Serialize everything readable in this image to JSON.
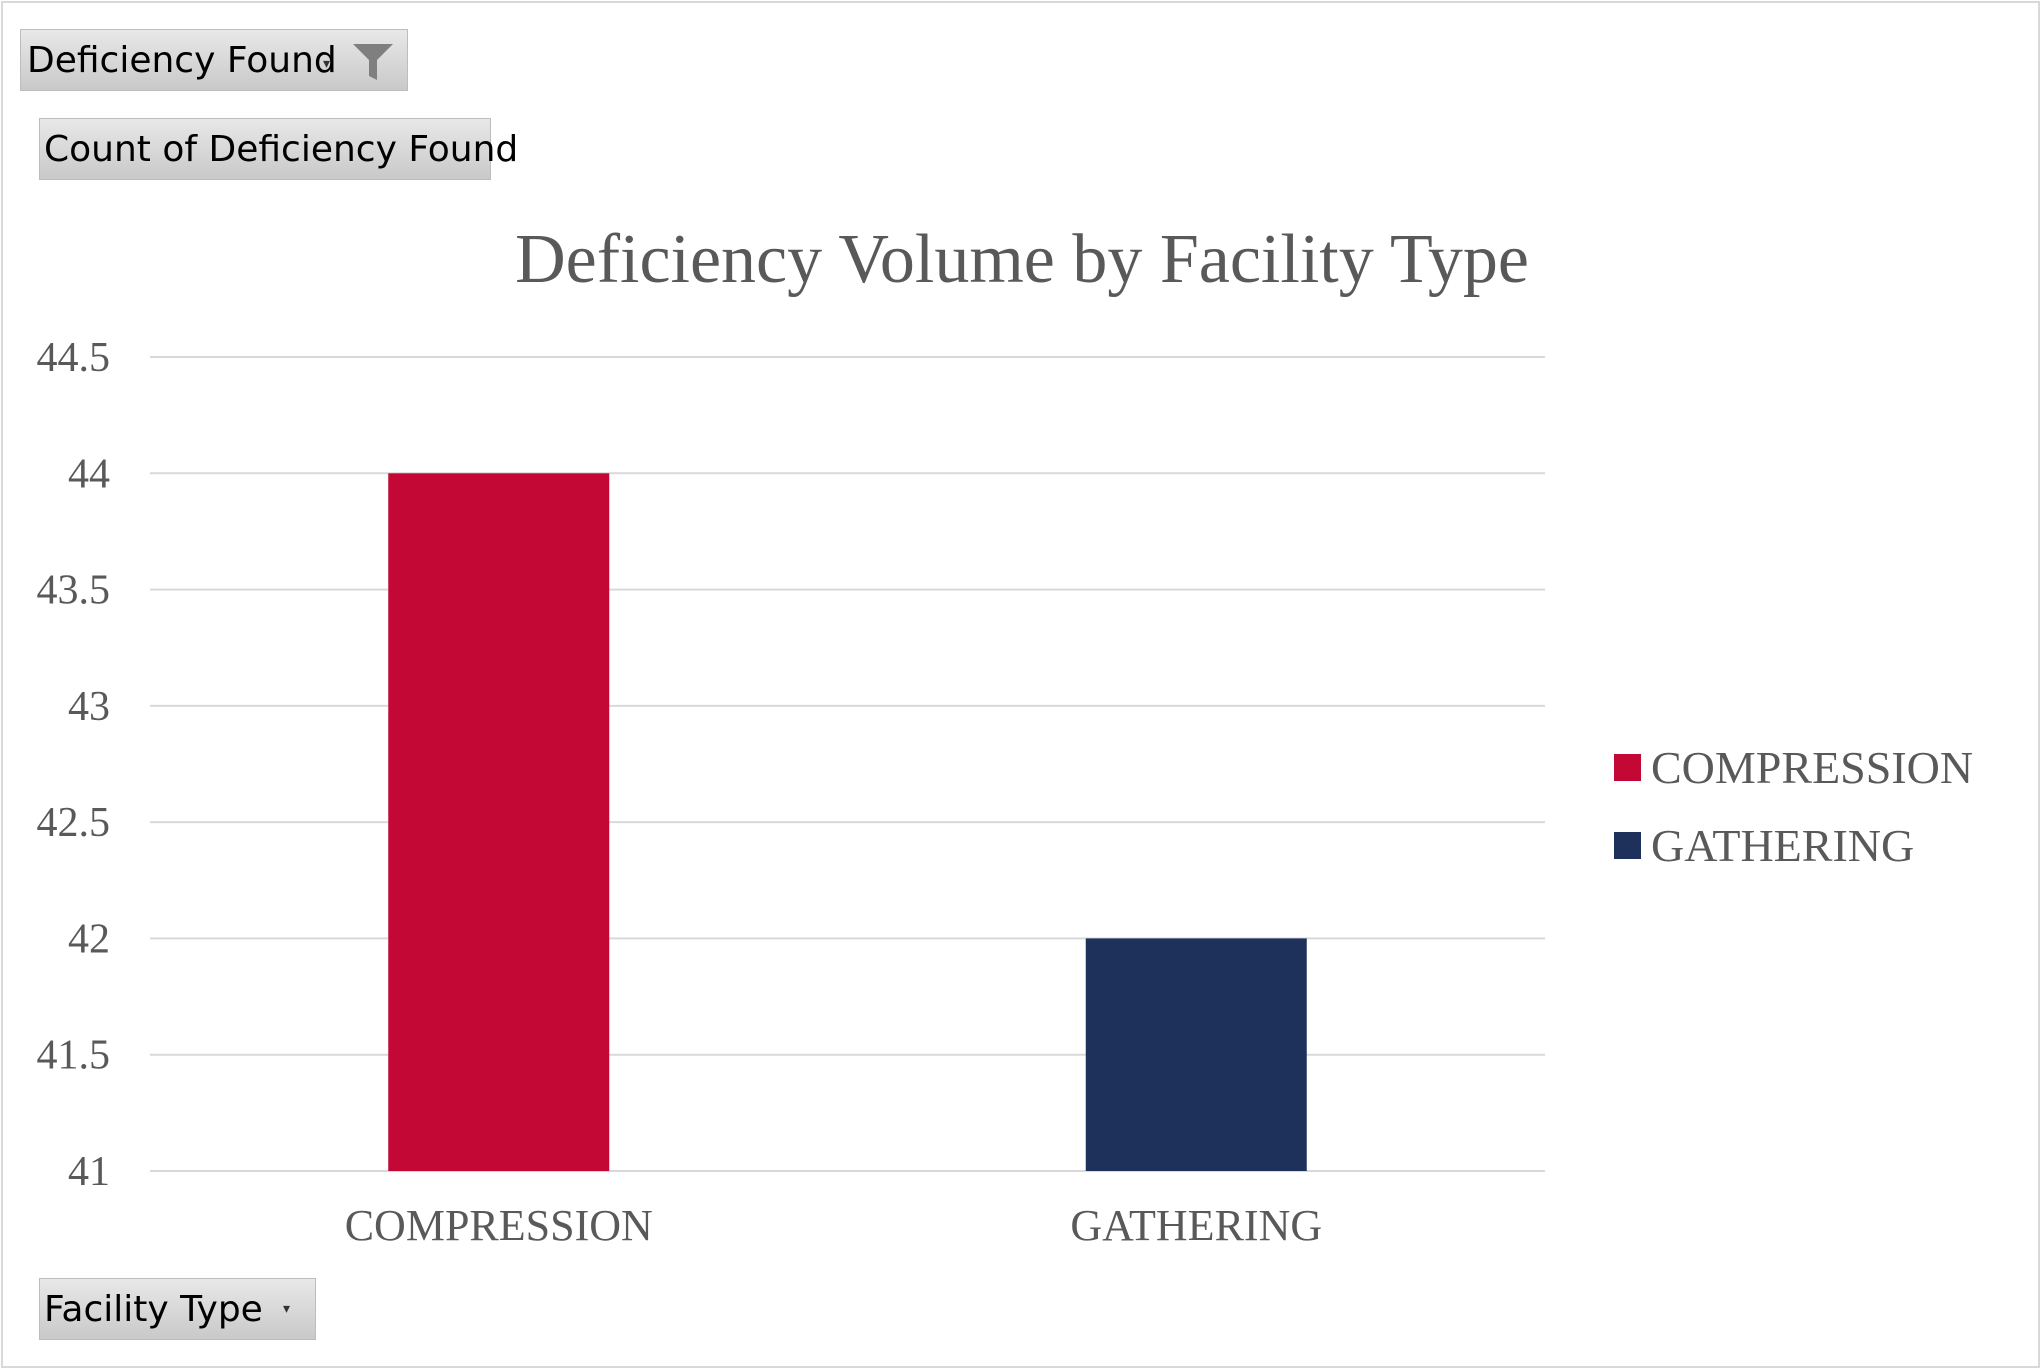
{
  "filter_field": {
    "label": "Deficiency Found"
  },
  "value_field": {
    "label": "Count of Deficiency Found"
  },
  "axis_field": {
    "label": "Facility Type"
  },
  "icons": {
    "filter": "funnel-filter-icon",
    "dropdown": "dropdown-arrow-icon"
  },
  "colors": {
    "COMPRESSION": "#c40835",
    "GATHERING": "#1d315a",
    "grid": "#d9d9d9",
    "text": "#595959"
  },
  "chart_data": {
    "type": "bar",
    "title": "Deficiency Volume by Facility Type",
    "xlabel": "",
    "ylabel": "",
    "categories": [
      "COMPRESSION",
      "GATHERING"
    ],
    "values": [
      44,
      42
    ],
    "ylim": [
      41,
      44.5
    ],
    "yticks": [
      "44.5",
      "44",
      "43.5",
      "43",
      "42.5",
      "42",
      "41.5",
      "41"
    ],
    "grid": true,
    "legend_position": "right",
    "legend": [
      "COMPRESSION",
      "GATHERING"
    ]
  }
}
